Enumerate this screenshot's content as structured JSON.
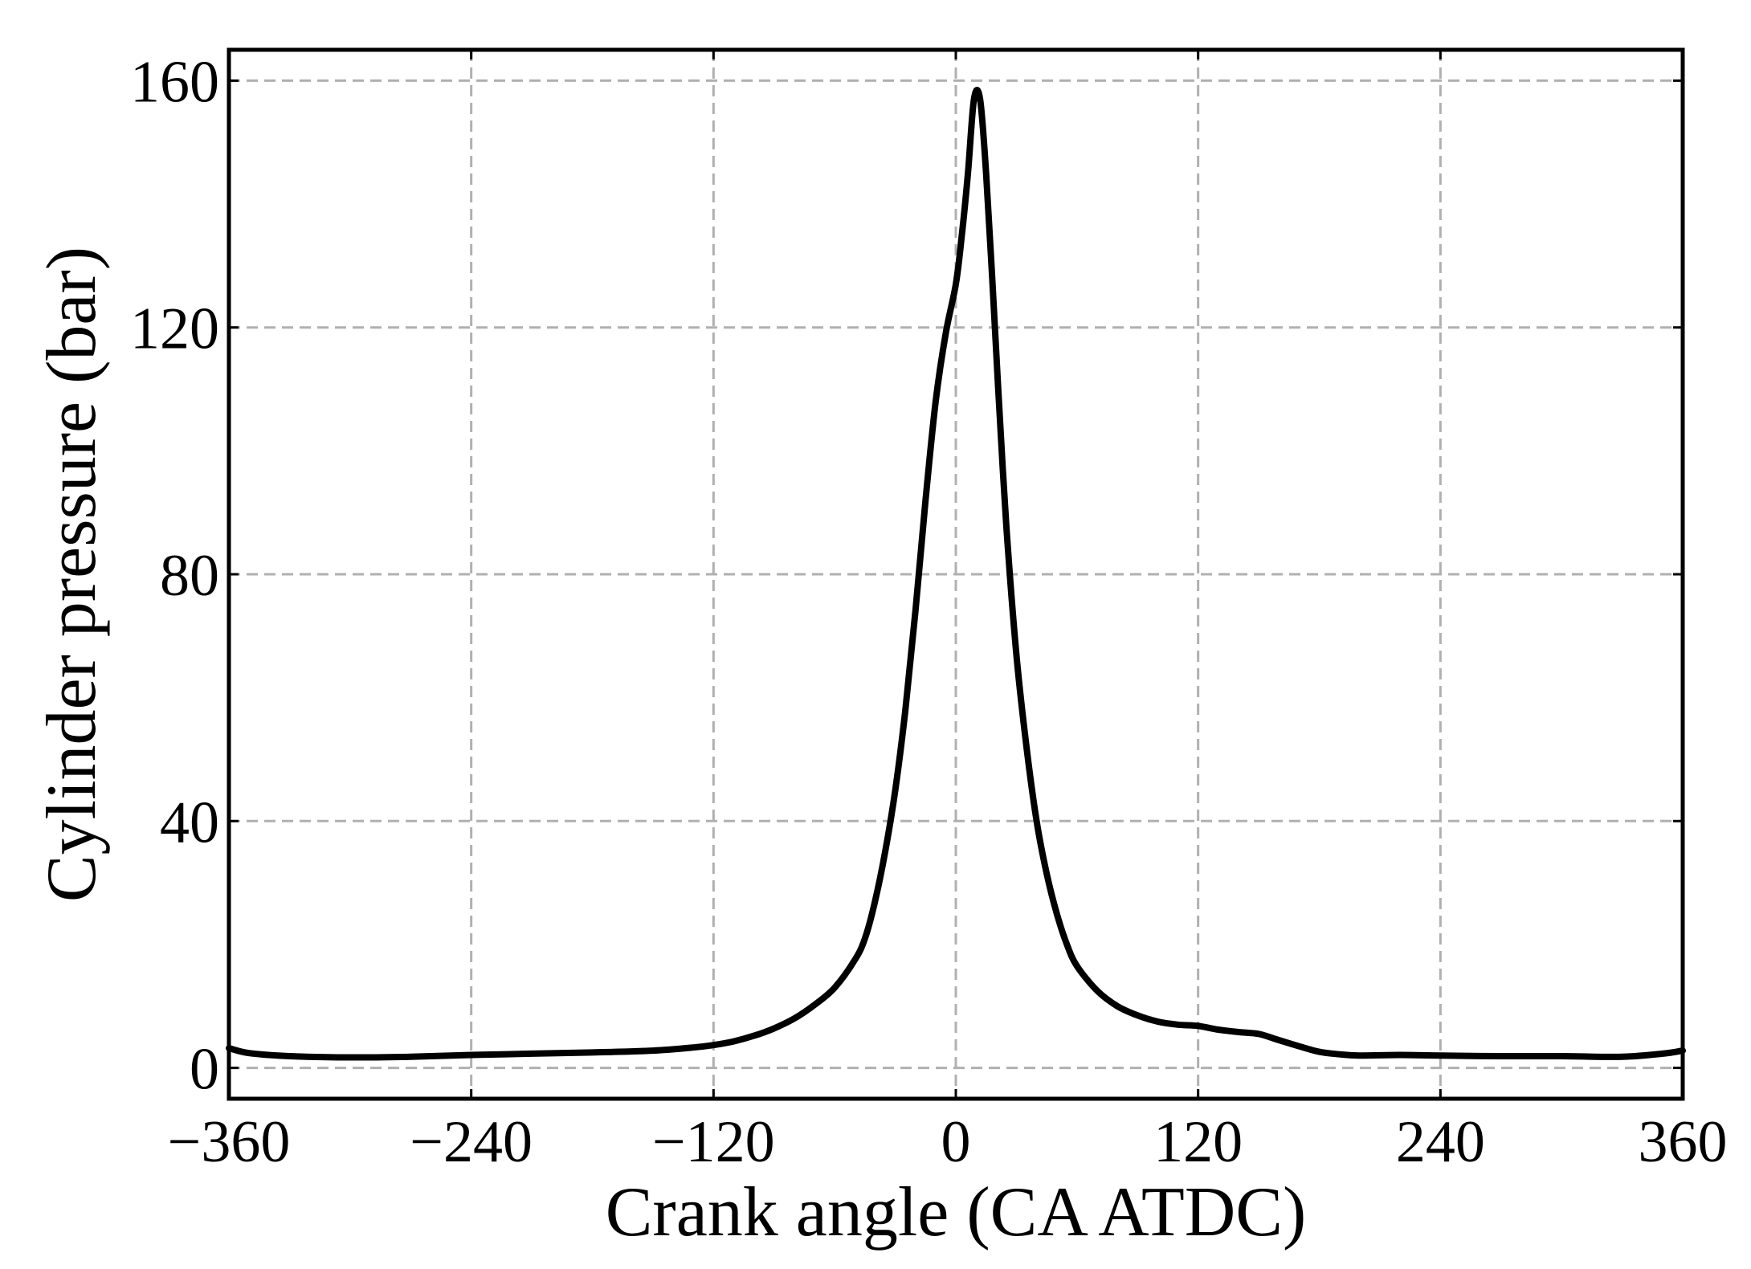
{
  "chart_data": {
    "type": "line",
    "title": "",
    "xlabel": "Crank angle (CA ATDC)",
    "ylabel": "Cylinder pressure (bar)",
    "xlim": [
      -360,
      360
    ],
    "ylim": [
      -5,
      165
    ],
    "xticks": [
      -360,
      -240,
      -120,
      0,
      120,
      240,
      360
    ],
    "xtick_labels": [
      "−360",
      "−240",
      "−120",
      "0",
      "120",
      "240",
      "360"
    ],
    "yticks": [
      0,
      40,
      80,
      120,
      160
    ],
    "ytick_labels": [
      "0",
      "40",
      "80",
      "120",
      "160"
    ],
    "grid": true,
    "legend": "none",
    "series": [
      {
        "color": "#000000",
        "x": [
          -360,
          -350,
          -330,
          -300,
          -270,
          -240,
          -210,
          -180,
          -150,
          -130,
          -120,
          -110,
          -100,
          -90,
          -80,
          -70,
          -60,
          -50,
          -45,
          -40,
          -35,
          -30,
          -25,
          -20,
          -15,
          -10,
          -5,
          0,
          3,
          6,
          9,
          12,
          15,
          18,
          21,
          25,
          30,
          35,
          40,
          45,
          50,
          55,
          60,
          70,
          80,
          90,
          100,
          110,
          120,
          130,
          140,
          150,
          160,
          170,
          180,
          190,
          200,
          220,
          240,
          270,
          300,
          330,
          350,
          360
        ],
        "y": [
          3.2,
          2.4,
          1.9,
          1.7,
          1.8,
          2.1,
          2.3,
          2.5,
          2.8,
          3.3,
          3.7,
          4.3,
          5.2,
          6.4,
          8.0,
          10.2,
          13.0,
          17.5,
          21.0,
          27.0,
          35.0,
          45.0,
          58.0,
          74.0,
          92.0,
          108.0,
          119.0,
          127.0,
          135.0,
          145.0,
          157.0,
          157.0,
          145.0,
          128.0,
          110.0,
          88.0,
          67.0,
          52.0,
          40.0,
          31.5,
          25.0,
          20.0,
          16.5,
          12.5,
          10.0,
          8.5,
          7.5,
          7.0,
          6.8,
          6.2,
          5.8,
          5.5,
          4.5,
          3.5,
          2.6,
          2.2,
          2.0,
          2.1,
          2.0,
          1.9,
          1.9,
          1.8,
          2.3,
          2.8
        ]
      }
    ]
  }
}
